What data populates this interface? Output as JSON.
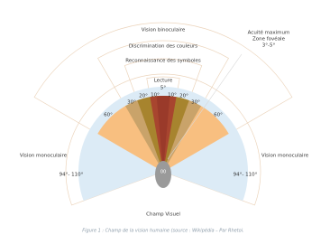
{
  "diagram": {
    "labels": {
      "binocular": "Vision binoculaire",
      "colors": "Discrimination des couleurs",
      "symbols": "Reconnaissance des symboles",
      "acuity": [
        "Acuité maximum",
        "Zone fovéale",
        "3°-5°"
      ],
      "reading": "Lecture",
      "reading_angle": "5°",
      "left_10": "10°",
      "right_10": "10°",
      "left_20": "20°",
      "right_20": "20°",
      "left_30": "30°",
      "right_30": "30°",
      "left_60": "60°",
      "right_60": "60°",
      "mono_left": "Vision monoculaire",
      "mono_right": "Vision monoculaire",
      "mono_left_angle": "94°- 110°",
      "mono_right_angle": "94°- 110°",
      "eyes": "00",
      "footer": "Champ Visuel"
    },
    "caption": "Figure 1 : Champ de la vision humaine (source : Wikipédia – Par Rhetoi."
  }
}
